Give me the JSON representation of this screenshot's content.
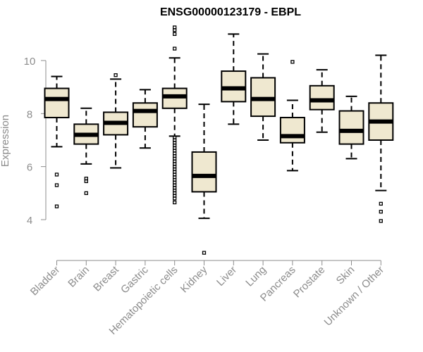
{
  "chart_data": {
    "type": "box",
    "title": "ENSG00000123179 - EBPL",
    "ylabel": "Expression",
    "xlabel": "",
    "ylim": [
      2.5,
      11.5
    ],
    "yticks": [
      4,
      6,
      8,
      10
    ],
    "grid": false,
    "box_fill": "#efe8d0",
    "categories": [
      "Bladder",
      "Brain",
      "Breast",
      "Gastric",
      "Hematopoietic cells",
      "Kidney",
      "Liver",
      "Lung",
      "Pancreas",
      "Prostate",
      "Skin",
      "Unknown / Other"
    ],
    "series": [
      {
        "category": "Bladder",
        "min": 6.75,
        "q1": 7.85,
        "median": 8.55,
        "q3": 8.95,
        "max": 9.4,
        "outliers": [
          5.7,
          5.3,
          4.5
        ]
      },
      {
        "category": "Brain",
        "min": 6.1,
        "q1": 6.85,
        "median": 7.2,
        "q3": 7.6,
        "max": 8.2,
        "outliers": [
          5.55,
          5.45,
          5.0
        ]
      },
      {
        "category": "Breast",
        "min": 5.95,
        "q1": 7.2,
        "median": 7.65,
        "q3": 8.05,
        "max": 9.3,
        "outliers": [
          9.45
        ]
      },
      {
        "category": "Gastric",
        "min": 6.7,
        "q1": 7.5,
        "median": 8.1,
        "q3": 8.4,
        "max": 8.9,
        "outliers": []
      },
      {
        "category": "Hematopoietic cells",
        "min": 7.15,
        "q1": 8.2,
        "median": 8.65,
        "q3": 8.95,
        "max": 10.1,
        "outliers": [
          11.25,
          11.15,
          11.0,
          10.45,
          7.1,
          7.0,
          6.9,
          6.8,
          6.7,
          6.6,
          6.5,
          6.4,
          6.3,
          6.2,
          6.1,
          6.0,
          5.9,
          5.8,
          5.7,
          5.6,
          5.5,
          5.4,
          5.3,
          5.2,
          5.1,
          5.0,
          4.9,
          4.8,
          4.65
        ]
      },
      {
        "category": "Kidney",
        "min": 4.05,
        "q1": 5.05,
        "median": 5.65,
        "q3": 6.55,
        "max": 8.35,
        "outliers": [
          2.75
        ]
      },
      {
        "category": "Liver",
        "min": 7.6,
        "q1": 8.45,
        "median": 8.95,
        "q3": 9.6,
        "max": 11.0,
        "outliers": []
      },
      {
        "category": "Lung",
        "min": 7.0,
        "q1": 7.9,
        "median": 8.55,
        "q3": 9.35,
        "max": 10.25,
        "outliers": []
      },
      {
        "category": "Pancreas",
        "min": 5.85,
        "q1": 6.9,
        "median": 7.15,
        "q3": 7.85,
        "max": 8.5,
        "outliers": [
          9.95
        ]
      },
      {
        "category": "Prostate",
        "min": 7.3,
        "q1": 8.15,
        "median": 8.5,
        "q3": 9.05,
        "max": 9.65,
        "outliers": []
      },
      {
        "category": "Skin",
        "min": 6.3,
        "q1": 6.85,
        "median": 7.35,
        "q3": 8.1,
        "max": 8.65,
        "outliers": []
      },
      {
        "category": "Unknown / Other",
        "min": 5.1,
        "q1": 7.0,
        "median": 7.7,
        "q3": 8.4,
        "max": 10.2,
        "outliers": [
          4.6,
          4.3,
          3.95
        ]
      }
    ]
  }
}
